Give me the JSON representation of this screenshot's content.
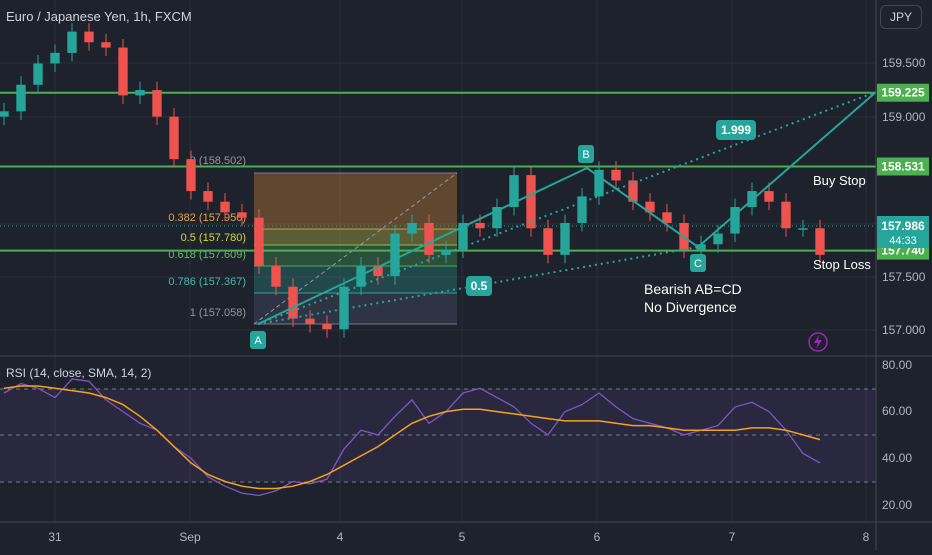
{
  "header": {
    "symbol_title": "Euro / Japanese Yen, 1h, FXCM",
    "currency": "JPY"
  },
  "colors": {
    "background": "#1e222d",
    "up": "#26a69a",
    "down": "#ef5350",
    "level_line": "#4caf50",
    "pattern": "#26a69a",
    "rsi": "#7e57c2",
    "rsi_sma": "#f7a21b"
  },
  "chart_data": [
    {
      "type": "candlestick",
      "x_tick_labels": [
        "31",
        "Sep",
        "4",
        "5",
        "6",
        "7",
        "8"
      ],
      "y_tick_labels": [
        "159.500",
        "159.000",
        "157.500",
        "157.000"
      ],
      "ylim": [
        156.9,
        159.85
      ],
      "close_series": [
        159.05,
        159.3,
        159.5,
        159.6,
        159.8,
        159.7,
        159.65,
        159.2,
        159.25,
        159.0,
        158.6,
        158.3,
        158.2,
        158.1,
        158.05,
        157.6,
        157.4,
        157.1,
        157.05,
        157.0,
        157.4,
        157.6,
        157.5,
        157.9,
        158.0,
        157.7,
        157.75,
        158.0,
        157.95,
        158.15,
        158.45,
        157.95,
        157.7,
        158.0,
        158.25,
        158.5,
        158.4,
        158.2,
        158.1,
        158.0,
        157.75,
        157.8,
        157.9,
        158.15,
        158.3,
        158.2,
        157.95,
        157.95,
        157.7
      ],
      "horizontal_levels": [
        {
          "price": 159.225,
          "label": "159.225"
        },
        {
          "price": 158.531,
          "label": "158.531",
          "note": "Buy Stop"
        },
        {
          "price": 157.74,
          "label": "157.740",
          "note": "Stop Loss"
        }
      ],
      "last_price": {
        "price": 157.986,
        "label": "157.986",
        "countdown": "44:33"
      },
      "fibonacci": [
        {
          "ratio": "0",
          "price": "158.502",
          "label": "0 (158.502)"
        },
        {
          "ratio": "0.382",
          "price": "157.950",
          "label": "0.382 (157.950)"
        },
        {
          "ratio": "0.5",
          "price": "157.780",
          "label": "0.5 (157.780)"
        },
        {
          "ratio": "0.618",
          "price": "157.609",
          "label": "0.618 (157.609)"
        },
        {
          "ratio": "0.786",
          "price": "157.367",
          "label": "0.786 (157.367)"
        },
        {
          "ratio": "1",
          "price": "157.058",
          "label": "1 (157.058)"
        }
      ],
      "pattern_points": [
        {
          "label": "A",
          "price": 157.06
        },
        {
          "label": "B",
          "price": 158.5
        },
        {
          "label": "C",
          "price": 157.78
        }
      ],
      "ratio_badges": [
        "1.999",
        "0.5"
      ],
      "annotations": [
        "Bearish AB=CD",
        "No Divergence"
      ]
    },
    {
      "type": "line",
      "title": "RSI (14, close, SMA, 14, 2)",
      "y_tick_labels": [
        "80.00",
        "60.00",
        "40.00",
        "20.00"
      ],
      "ylim": [
        20,
        80
      ],
      "bands": [
        30,
        50,
        70
      ],
      "series": [
        {
          "values": [
            68,
            72,
            70,
            66,
            74,
            73,
            65,
            60,
            55,
            52,
            45,
            40,
            32,
            28,
            25,
            24,
            26,
            30,
            29,
            31,
            44,
            52,
            50,
            58,
            65,
            55,
            60,
            68,
            70,
            66,
            62,
            55,
            50,
            60,
            63,
            68,
            62,
            57,
            55,
            53,
            50,
            52,
            54,
            62,
            64,
            60,
            52,
            42,
            38
          ]
        },
        {
          "values": [
            70,
            71,
            71,
            70,
            69,
            68,
            66,
            63,
            58,
            52,
            45,
            38,
            33,
            30,
            28,
            27,
            27,
            28,
            30,
            33,
            37,
            41,
            45,
            50,
            55,
            58,
            60,
            61,
            61,
            60,
            59,
            58,
            57,
            56,
            56,
            56,
            55,
            54,
            54,
            53,
            52,
            52,
            52,
            52,
            53,
            53,
            52,
            50,
            48
          ]
        }
      ]
    }
  ]
}
